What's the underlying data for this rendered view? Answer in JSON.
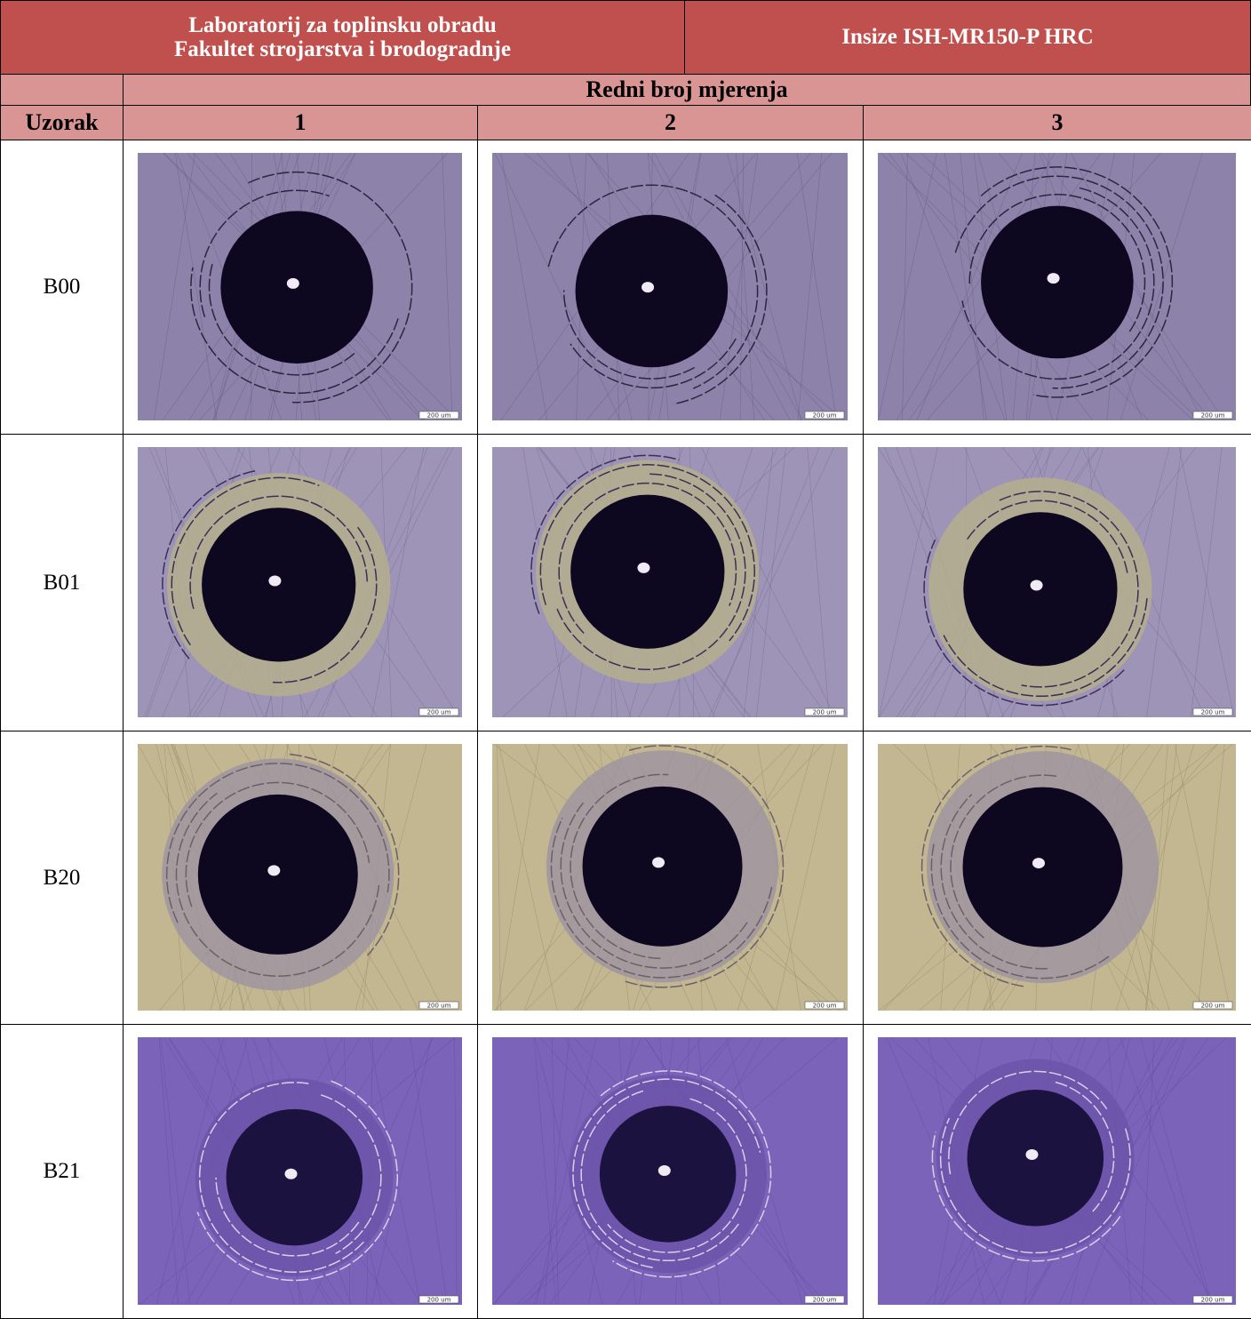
{
  "header": {
    "lab_lines": [
      "Laboratorij za toplinsku obradu",
      "Fakultet strojarstva i brodogradnje"
    ],
    "instrument": "Insize ISH-MR150-P HRC"
  },
  "table": {
    "group_header": "Redni broj mjerenja",
    "columns": [
      "Uzorak",
      "1",
      "2",
      "3"
    ],
    "rows": [
      "B00",
      "B01",
      "B20",
      "B21"
    ]
  },
  "scale_label": "200 um"
}
